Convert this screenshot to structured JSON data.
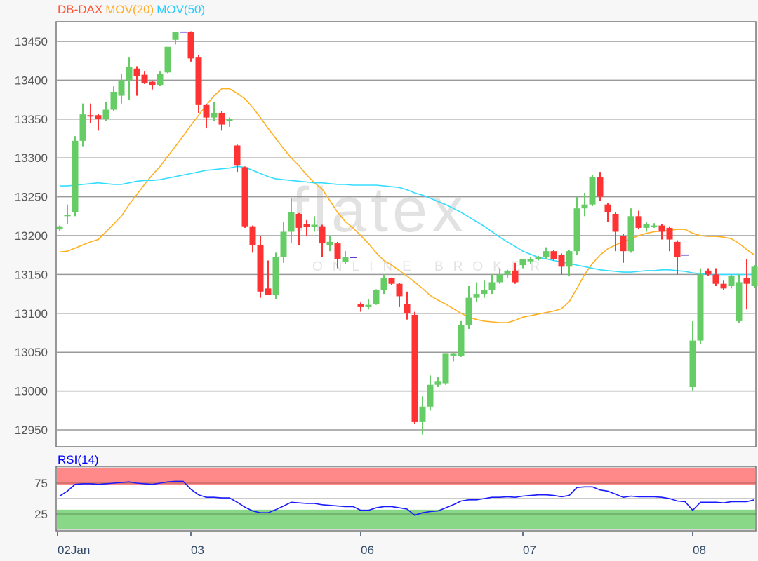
{
  "chart_data": [
    {
      "type": "candlestick",
      "title_parts": [
        {
          "text": "DB-DAX",
          "color": "#ff5533"
        },
        {
          "text": "MOV(20)",
          "color": "#ffaa22"
        },
        {
          "text": "MOV(50)",
          "color": "#22ccff"
        }
      ],
      "ylim": [
        12920,
        13475
      ],
      "yticks": [
        12950,
        13000,
        13050,
        13100,
        13150,
        13200,
        13250,
        13300,
        13350,
        13400,
        13450
      ],
      "grid": true,
      "colors": {
        "up": "#66cc66",
        "down": "#ff3333",
        "doji": "#3300cc",
        "ma20": "#ffb020",
        "ma50": "#33ddff"
      },
      "x_ticks": [
        {
          "label": "02Jan",
          "candle": 0
        },
        {
          "label": "03",
          "candle": 17
        },
        {
          "label": "06",
          "candle": 39
        },
        {
          "label": "07",
          "candle": 60
        },
        {
          "label": "08",
          "candle": 82
        }
      ],
      "candles_ohlc": [
        [
          13208,
          13213,
          13206,
          13212
        ],
        [
          13225,
          13240,
          13215,
          13227
        ],
        [
          13230,
          13328,
          13225,
          13322
        ],
        [
          13322,
          13370,
          13315,
          13356
        ],
        [
          13355,
          13370,
          13345,
          13354
        ],
        [
          13355,
          13357,
          13335,
          13350
        ],
        [
          13350,
          13372,
          13348,
          13362
        ],
        [
          13362,
          13392,
          13360,
          13385
        ],
        [
          13380,
          13408,
          13370,
          13400
        ],
        [
          13400,
          13430,
          13375,
          13417
        ],
        [
          13415,
          13418,
          13380,
          13405
        ],
        [
          13407,
          13412,
          13395,
          13396
        ],
        [
          13398,
          13399,
          13388,
          13394
        ],
        [
          13394,
          13412,
          13393,
          13408
        ],
        [
          13410,
          13443,
          13409,
          13443
        ],
        [
          13452,
          13462,
          13446,
          13462
        ],
        [
          13462,
          13462,
          13462,
          13462
        ],
        [
          13462,
          13463,
          13424,
          13428
        ],
        [
          13430,
          13432,
          13358,
          13368
        ],
        [
          13368,
          13369,
          13338,
          13352
        ],
        [
          13352,
          13372,
          13347,
          13358
        ],
        [
          13358,
          13360,
          13335,
          13343
        ],
        [
          13348,
          13352,
          13340,
          13350
        ],
        [
          13316,
          13317,
          13282,
          13290
        ],
        [
          13288,
          13289,
          13210,
          13212
        ],
        [
          13212,
          13213,
          13178,
          13188
        ],
        [
          13188,
          13200,
          13120,
          13128
        ],
        [
          13132,
          13168,
          13124,
          13124
        ],
        [
          13124,
          13178,
          13118,
          13172
        ],
        [
          13172,
          13218,
          13165,
          13205
        ],
        [
          13205,
          13248,
          13190,
          13230
        ],
        [
          13228,
          13229,
          13188,
          13210
        ],
        [
          13215,
          13220,
          13200,
          13211
        ],
        [
          13211,
          13225,
          13205,
          13214
        ],
        [
          13212,
          13214,
          13172,
          13190
        ],
        [
          13188,
          13200,
          13180,
          13192
        ],
        [
          13190,
          13192,
          13158,
          13170
        ],
        [
          13166,
          13180,
          13163,
          13172
        ],
        [
          13172,
          13172,
          13172,
          13172
        ],
        [
          13112,
          13114,
          13102,
          13108
        ],
        [
          13108,
          13118,
          13105,
          13111
        ],
        [
          13112,
          13131,
          13111,
          13130
        ],
        [
          13130,
          13150,
          13125,
          13145
        ],
        [
          13145,
          13146,
          13136,
          13138
        ],
        [
          13138,
          13139,
          13108,
          13122
        ],
        [
          13112,
          13128,
          13092,
          13100
        ],
        [
          13098,
          13102,
          12958,
          12960
        ],
        [
          12960,
          12993,
          12944,
          12980
        ],
        [
          12980,
          13020,
          12975,
          13008
        ],
        [
          13008,
          13018,
          13005,
          13012
        ],
        [
          13010,
          13048,
          13008,
          13048
        ],
        [
          13045,
          13050,
          13038,
          13048
        ],
        [
          13045,
          13090,
          13044,
          13085
        ],
        [
          13085,
          13135,
          13080,
          13120
        ],
        [
          13120,
          13140,
          13115,
          13125
        ],
        [
          13125,
          13142,
          13120,
          13130
        ],
        [
          13130,
          13150,
          13125,
          13140
        ],
        [
          13140,
          13158,
          13138,
          13150
        ],
        [
          13150,
          13156,
          13146,
          13155
        ],
        [
          13155,
          13165,
          13138,
          13140
        ],
        [
          13162,
          13170,
          13158,
          13170
        ],
        [
          13167,
          13172,
          13164,
          13170
        ],
        [
          13170,
          13174,
          13168,
          13172
        ],
        [
          13172,
          13185,
          13170,
          13180
        ],
        [
          13180,
          13182,
          13168,
          13170
        ],
        [
          13175,
          13177,
          13150,
          13160
        ],
        [
          13160,
          13182,
          13148,
          13180
        ],
        [
          13180,
          13250,
          13175,
          13235
        ],
        [
          13235,
          13255,
          13225,
          13240
        ],
        [
          13240,
          13278,
          13238,
          13275
        ],
        [
          13275,
          13282,
          13245,
          13250
        ],
        [
          13240,
          13242,
          13218,
          13230
        ],
        [
          13228,
          13230,
          13180,
          13205
        ],
        [
          13200,
          13202,
          13165,
          13180
        ],
        [
          13180,
          13235,
          13178,
          13225
        ],
        [
          13225,
          13232,
          13208,
          13210
        ],
        [
          13210,
          13218,
          13205,
          13215
        ],
        [
          13212,
          13216,
          13210,
          13213
        ],
        [
          13213,
          13215,
          13195,
          13205
        ],
        [
          13210,
          13212,
          13180,
          13195
        ],
        [
          13192,
          13194,
          13150,
          13172
        ],
        [
          13175,
          13175,
          13175,
          13175
        ],
        [
          13005,
          13090,
          13000,
          13065
        ],
        [
          13065,
          13158,
          13060,
          13150
        ],
        [
          13155,
          13158,
          13148,
          13150
        ],
        [
          13150,
          13158,
          13135,
          13138
        ],
        [
          13138,
          13142,
          13130,
          13132
        ],
        [
          13135,
          13150,
          13132,
          13148
        ],
        [
          13090,
          13150,
          13088,
          13140
        ],
        [
          13145,
          13170,
          13105,
          13138
        ],
        [
          13135,
          13162,
          13133,
          13160
        ]
      ],
      "ma20": [
        13179,
        13180,
        13184,
        13188,
        13192,
        13195,
        13205,
        13215,
        13225,
        13240,
        13253,
        13266,
        13278,
        13289,
        13302,
        13315,
        13328,
        13342,
        13355,
        13368,
        13380,
        13389,
        13389,
        13383,
        13376,
        13365,
        13352,
        13338,
        13325,
        13312,
        13300,
        13290,
        13278,
        13268,
        13260,
        13245,
        13230,
        13218,
        13210,
        13200,
        13190,
        13178,
        13168,
        13162,
        13155,
        13148,
        13140,
        13132,
        13123,
        13117,
        13112,
        13106,
        13100,
        13095,
        13092,
        13090,
        13089,
        13088,
        13088,
        13091,
        13095,
        13097,
        13099,
        13101,
        13103,
        13106,
        13115,
        13132,
        13150,
        13164,
        13175,
        13183,
        13188,
        13192,
        13196,
        13200,
        13203,
        13205,
        13206,
        13207,
        13208,
        13208,
        13203,
        13200,
        13199,
        13199,
        13198,
        13196,
        13190,
        13182,
        13175
      ],
      "ma50": [
        13264,
        13264,
        13265,
        13266,
        13267,
        13268,
        13267,
        13266,
        13266,
        13268,
        13270,
        13271,
        13271,
        13272,
        13274,
        13276,
        13278,
        13280,
        13282,
        13284,
        13285,
        13286,
        13287,
        13289,
        13288,
        13284,
        13280,
        13276,
        13273,
        13272,
        13271,
        13270,
        13269,
        13268,
        13268,
        13267,
        13266,
        13266,
        13265,
        13265,
        13265,
        13265,
        13264,
        13263,
        13262,
        13259,
        13255,
        13252,
        13248,
        13244,
        13240,
        13235,
        13230,
        13224,
        13218,
        13212,
        13205,
        13198,
        13192,
        13186,
        13180,
        13176,
        13172,
        13170,
        13168,
        13166,
        13164,
        13162,
        13160,
        13158,
        13156,
        13155,
        13154,
        13153,
        13153,
        13154,
        13155,
        13155,
        13156,
        13156,
        13155,
        13154,
        13152,
        13151,
        13150,
        13150,
        13150,
        13150,
        13150,
        13150,
        13150
      ]
    },
    {
      "type": "line",
      "title": "RSI(14)",
      "title_color": "#0000ff",
      "ylim": [
        0,
        100
      ],
      "yticks": [
        25,
        75
      ],
      "overbought_band": [
        72,
        100
      ],
      "oversold_band": [
        0,
        32
      ],
      "colors": {
        "line": "#1a1aff",
        "overbought": "#ff8888",
        "oversold": "#88d888"
      },
      "values": [
        54,
        62,
        73,
        74,
        74,
        73,
        74,
        75,
        76,
        77,
        75,
        74,
        73,
        75,
        77,
        78,
        78,
        65,
        56,
        52,
        52,
        51,
        51,
        44,
        36,
        30,
        27,
        27,
        32,
        38,
        44,
        43,
        42,
        42,
        40,
        39,
        38,
        37,
        37,
        31,
        31,
        35,
        37,
        37,
        35,
        33,
        23,
        27,
        29,
        30,
        35,
        40,
        46,
        48,
        48,
        50,
        52,
        52,
        53,
        52,
        54,
        55,
        56,
        56,
        55,
        53,
        55,
        68,
        69,
        69,
        64,
        62,
        57,
        52,
        54,
        53,
        53,
        53,
        52,
        50,
        46,
        45,
        31,
        44,
        44,
        44,
        43,
        45,
        45,
        45,
        48
      ]
    }
  ],
  "watermark": {
    "logo": "flatex",
    "tagline": "ONLINE BROKER"
  }
}
